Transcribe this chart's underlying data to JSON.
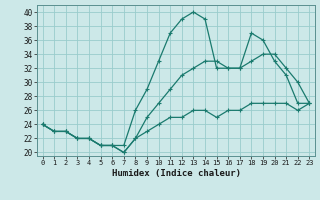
{
  "title": "",
  "xlabel": "Humidex (Indice chaleur)",
  "bg_color": "#cce8e8",
  "grid_color": "#99cccc",
  "line_color": "#1a7a6e",
  "xlim": [
    -0.5,
    23.5
  ],
  "ylim": [
    19.5,
    41.0
  ],
  "xticks": [
    0,
    1,
    2,
    3,
    4,
    5,
    6,
    7,
    8,
    9,
    10,
    11,
    12,
    13,
    14,
    15,
    16,
    17,
    18,
    19,
    20,
    21,
    22,
    23
  ],
  "yticks": [
    20,
    22,
    24,
    26,
    28,
    30,
    32,
    34,
    36,
    38,
    40
  ],
  "line1_x": [
    0,
    1,
    2,
    3,
    4,
    5,
    6,
    7,
    8,
    9,
    10,
    11,
    12,
    13,
    14,
    15,
    16,
    17,
    18,
    19,
    20,
    21,
    22,
    23
  ],
  "line1_y": [
    24,
    23,
    23,
    22,
    22,
    21,
    21,
    21,
    26,
    29,
    33,
    37,
    39,
    40,
    39,
    32,
    32,
    32,
    37,
    36,
    33,
    31,
    27,
    27
  ],
  "line2_x": [
    0,
    1,
    2,
    3,
    4,
    5,
    6,
    7,
    8,
    9,
    10,
    11,
    12,
    13,
    14,
    15,
    16,
    17,
    18,
    19,
    20,
    21,
    22,
    23
  ],
  "line2_y": [
    24,
    23,
    23,
    22,
    22,
    21,
    21,
    20,
    22,
    25,
    27,
    29,
    31,
    32,
    33,
    33,
    32,
    32,
    33,
    34,
    34,
    32,
    30,
    27
  ],
  "line3_x": [
    0,
    1,
    2,
    3,
    4,
    5,
    6,
    7,
    8,
    9,
    10,
    11,
    12,
    13,
    14,
    15,
    16,
    17,
    18,
    19,
    20,
    21,
    22,
    23
  ],
  "line3_y": [
    24,
    23,
    23,
    22,
    22,
    21,
    21,
    20,
    22,
    23,
    24,
    25,
    25,
    26,
    26,
    25,
    26,
    26,
    27,
    27,
    27,
    27,
    26,
    27
  ]
}
